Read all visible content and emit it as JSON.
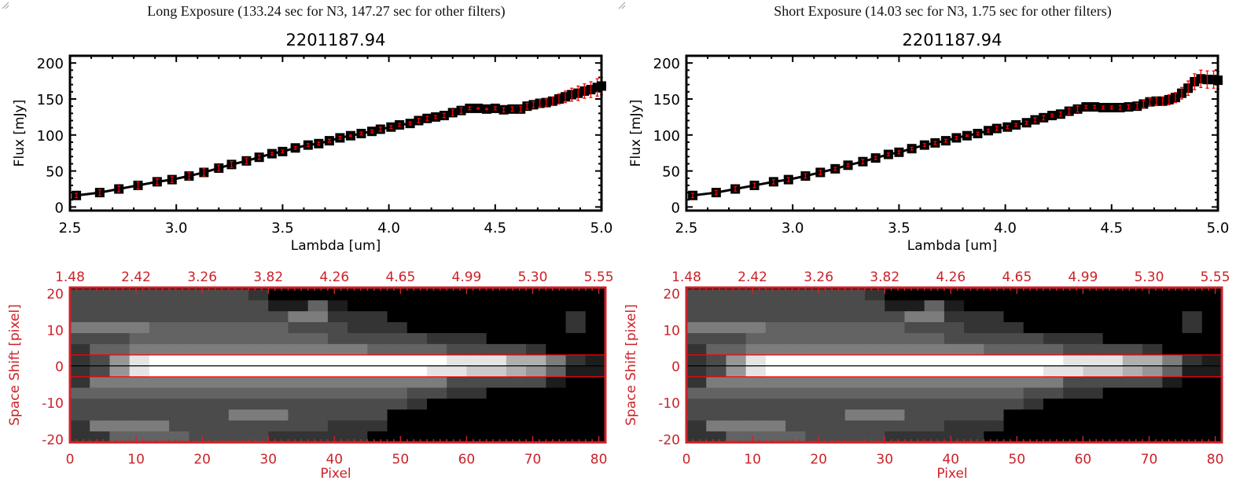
{
  "panels": [
    {
      "heading": "Long Exposure (133.24 sec for N3, 147.27 sec for other filters)"
    },
    {
      "heading": "Short Exposure (14.03 sec for N3, 1.75 sec for other filters)"
    }
  ],
  "colors": {
    "axes": "#000000",
    "errorbar": "#ff0000",
    "image_axes": "#cc2229",
    "extraction_lines": "#ff0000"
  },
  "chart_data": [
    {
      "type": "line",
      "title": "2201187.94",
      "xlabel": "Lambda [um]",
      "ylabel": "Flux [mJy]",
      "xlim": [
        2.5,
        5.0
      ],
      "ylim": [
        -5,
        210
      ],
      "xticks": [
        "2.5",
        "3.0",
        "3.5",
        "4.0",
        "4.5",
        "5.0"
      ],
      "yticks": [
        "0",
        "50",
        "100",
        "150",
        "200"
      ],
      "x": [
        2.53,
        2.64,
        2.73,
        2.82,
        2.91,
        2.98,
        3.06,
        3.13,
        3.2,
        3.26,
        3.33,
        3.39,
        3.45,
        3.5,
        3.56,
        3.62,
        3.67,
        3.72,
        3.77,
        3.82,
        3.87,
        3.92,
        3.96,
        4.01,
        4.05,
        4.1,
        4.14,
        4.18,
        4.22,
        4.26,
        4.3,
        4.34,
        4.38,
        4.42,
        4.46,
        4.5,
        4.54,
        4.58,
        4.62,
        4.65,
        4.68,
        4.71,
        4.74,
        4.77,
        4.8,
        4.83,
        4.86,
        4.89,
        4.92,
        4.95,
        4.98,
        5.0
      ],
      "y": [
        16,
        20,
        25,
        30,
        35,
        38,
        43,
        48,
        54,
        59,
        64,
        69,
        74,
        77,
        82,
        86,
        88,
        92,
        96,
        99,
        102,
        105,
        108,
        111,
        114,
        116,
        120,
        123,
        125,
        127,
        131,
        134,
        137,
        137,
        136,
        137,
        135,
        136,
        136,
        140,
        142,
        144,
        145,
        147,
        150,
        153,
        156,
        158,
        161,
        163,
        166,
        168
      ],
      "yerr": [
        3,
        4,
        4,
        5,
        4,
        4,
        5,
        5,
        4,
        4,
        4,
        3,
        2,
        2,
        2,
        2,
        2,
        2,
        2,
        1,
        2,
        2,
        3,
        2,
        2,
        2,
        3,
        3,
        2,
        3,
        4,
        4,
        2,
        1,
        1,
        2,
        3,
        3,
        4,
        4,
        4,
        5,
        5,
        6,
        7,
        8,
        9,
        10,
        10,
        11,
        12,
        12
      ]
    },
    {
      "type": "heatmap",
      "xlabel": "Pixel",
      "ylabel": "Space Shift [pixel]",
      "xlim": [
        0,
        81
      ],
      "ylim": [
        -21,
        21.5
      ],
      "xticks": [
        "0",
        "10",
        "20",
        "30",
        "40",
        "50",
        "60",
        "70",
        "80"
      ],
      "yticks": [
        "-20",
        "-10",
        "0",
        "10",
        "20"
      ],
      "top_axis_ticks": [
        "1.48",
        "2.42",
        "3.26",
        "3.82",
        "4.26",
        "4.65",
        "4.99",
        "5.30",
        "5.55"
      ],
      "extraction_limits": [
        -3,
        3
      ],
      "center_line": 0,
      "cell_size_pixels": 3,
      "intensity_rows_top_to_bottom": [
        [
          3,
          3,
          3,
          3,
          3,
          3,
          3,
          3,
          3,
          2,
          0,
          0,
          0,
          0,
          0,
          0,
          0,
          0,
          0,
          0,
          0,
          0,
          0,
          0,
          0,
          0,
          0
        ],
        [
          3,
          3,
          3,
          3,
          3,
          3,
          3,
          3,
          3,
          3,
          1,
          1,
          4,
          1,
          0,
          0,
          0,
          0,
          0,
          0,
          0,
          0,
          0,
          0,
          0,
          0,
          0
        ],
        [
          3,
          3,
          3,
          3,
          3,
          3,
          3,
          3,
          3,
          3,
          3,
          5,
          5,
          2,
          2,
          2,
          0,
          0,
          0,
          0,
          0,
          0,
          0,
          0,
          0,
          2,
          0
        ],
        [
          5,
          5,
          5,
          5,
          4,
          4,
          4,
          4,
          4,
          4,
          4,
          3,
          3,
          3,
          2,
          2,
          2,
          0,
          0,
          0,
          0,
          0,
          0,
          0,
          0,
          2,
          0
        ],
        [
          3,
          3,
          3,
          4,
          4,
          4,
          4,
          4,
          4,
          4,
          4,
          4,
          4,
          3,
          3,
          3,
          3,
          3,
          2,
          2,
          2,
          0,
          0,
          0,
          0,
          0,
          0
        ],
        [
          2,
          4,
          4,
          5,
          5,
          5,
          5,
          5,
          5,
          5,
          5,
          5,
          5,
          5,
          5,
          4,
          4,
          4,
          4,
          3,
          3,
          3,
          3,
          2,
          0,
          0,
          0
        ],
        [
          2,
          3,
          6,
          9,
          10,
          10,
          10,
          10,
          10,
          10,
          10,
          10,
          10,
          10,
          10,
          10,
          10,
          10,
          10,
          9,
          9,
          9,
          7,
          7,
          5,
          2,
          1
        ],
        [
          2,
          3,
          6,
          9,
          10,
          10,
          10,
          10,
          10,
          10,
          10,
          10,
          10,
          10,
          10,
          10,
          10,
          10,
          9,
          9,
          8,
          8,
          7,
          6,
          4,
          1,
          1
        ],
        [
          2,
          5,
          5,
          5,
          5,
          5,
          5,
          5,
          5,
          5,
          5,
          5,
          5,
          5,
          5,
          5,
          5,
          5,
          5,
          3,
          3,
          3,
          3,
          3,
          1,
          0,
          0
        ],
        [
          4,
          4,
          4,
          4,
          4,
          4,
          4,
          4,
          4,
          4,
          4,
          4,
          4,
          4,
          4,
          4,
          4,
          3,
          3,
          2,
          2,
          0,
          0,
          0,
          0,
          0,
          0
        ],
        [
          3,
          3,
          3,
          3,
          3,
          3,
          3,
          3,
          3,
          3,
          3,
          3,
          3,
          3,
          3,
          3,
          3,
          2,
          0,
          0,
          0,
          0,
          0,
          0,
          0,
          0,
          0
        ],
        [
          3,
          3,
          3,
          3,
          3,
          3,
          3,
          3,
          5,
          5,
          5,
          3,
          3,
          3,
          3,
          3,
          0,
          0,
          0,
          0,
          0,
          0,
          0,
          0,
          0,
          0,
          0
        ],
        [
          2,
          5,
          5,
          5,
          5,
          3,
          3,
          3,
          3,
          3,
          3,
          3,
          3,
          2,
          2,
          2,
          0,
          0,
          0,
          0,
          0,
          0,
          0,
          0,
          0,
          0,
          0
        ],
        [
          2,
          2,
          4,
          4,
          4,
          4,
          3,
          3,
          3,
          3,
          2,
          2,
          2,
          2,
          2,
          0,
          0,
          0,
          0,
          0,
          0,
          0,
          0,
          0,
          0,
          0,
          0
        ]
      ]
    },
    {
      "type": "line",
      "title": "2201187.94",
      "xlabel": "Lambda [um]",
      "ylabel": "Flux [mJy]",
      "xlim": [
        2.5,
        5.0
      ],
      "ylim": [
        -5,
        210
      ],
      "xticks": [
        "2.5",
        "3.0",
        "3.5",
        "4.0",
        "4.5",
        "5.0"
      ],
      "yticks": [
        "0",
        "50",
        "100",
        "150",
        "200"
      ],
      "x": [
        2.53,
        2.64,
        2.73,
        2.82,
        2.91,
        2.98,
        3.06,
        3.13,
        3.2,
        3.26,
        3.33,
        3.39,
        3.45,
        3.5,
        3.56,
        3.62,
        3.67,
        3.72,
        3.77,
        3.82,
        3.87,
        3.92,
        3.96,
        4.01,
        4.05,
        4.1,
        4.14,
        4.18,
        4.22,
        4.26,
        4.3,
        4.34,
        4.38,
        4.42,
        4.46,
        4.5,
        4.54,
        4.58,
        4.62,
        4.65,
        4.68,
        4.71,
        4.74,
        4.77,
        4.8,
        4.83,
        4.86,
        4.89,
        4.92,
        4.95,
        4.98,
        5.0
      ],
      "y": [
        16,
        20,
        25,
        30,
        35,
        38,
        43,
        48,
        53,
        58,
        63,
        68,
        73,
        76,
        81,
        86,
        89,
        92,
        96,
        99,
        102,
        106,
        109,
        111,
        114,
        117,
        121,
        124,
        127,
        129,
        133,
        136,
        139,
        139,
        138,
        138,
        138,
        139,
        140,
        143,
        146,
        147,
        147,
        149,
        152,
        158,
        165,
        174,
        178,
        177,
        177,
        176
      ],
      "yerr": [
        3,
        3,
        3,
        3,
        3,
        3,
        3,
        3,
        2,
        2,
        3,
        2,
        2,
        2,
        2,
        2,
        2,
        2,
        2,
        1,
        2,
        2,
        3,
        2,
        2,
        2,
        3,
        3,
        2,
        3,
        4,
        4,
        2,
        2,
        2,
        2,
        3,
        3,
        4,
        5,
        5,
        5,
        6,
        7,
        7,
        8,
        10,
        11,
        12,
        12,
        12,
        12
      ]
    },
    {
      "type": "heatmap",
      "xlabel": "Pixel",
      "ylabel": "Space Shift [pixel]",
      "xlim": [
        0,
        81
      ],
      "ylim": [
        -21,
        21.5
      ],
      "xticks": [
        "0",
        "10",
        "20",
        "30",
        "40",
        "50",
        "60",
        "70",
        "80"
      ],
      "yticks": [
        "-20",
        "-10",
        "0",
        "10",
        "20"
      ],
      "top_axis_ticks": [
        "1.48",
        "2.42",
        "3.26",
        "3.82",
        "4.26",
        "4.65",
        "4.99",
        "5.30",
        "5.55"
      ],
      "extraction_limits": [
        -3,
        3
      ],
      "center_line": 0,
      "cell_size_pixels": 3,
      "intensity_rows_top_to_bottom": [
        [
          3,
          3,
          3,
          3,
          3,
          3,
          3,
          3,
          3,
          2,
          0,
          0,
          0,
          0,
          0,
          0,
          0,
          0,
          0,
          0,
          0,
          0,
          0,
          0,
          0,
          0,
          0
        ],
        [
          3,
          3,
          3,
          3,
          3,
          3,
          3,
          3,
          3,
          3,
          1,
          1,
          4,
          1,
          0,
          0,
          0,
          0,
          0,
          0,
          0,
          0,
          0,
          0,
          0,
          0,
          0
        ],
        [
          3,
          3,
          3,
          3,
          3,
          3,
          3,
          3,
          3,
          3,
          3,
          5,
          5,
          2,
          2,
          2,
          0,
          0,
          0,
          0,
          0,
          0,
          0,
          0,
          0,
          2,
          0
        ],
        [
          5,
          5,
          5,
          5,
          4,
          4,
          4,
          4,
          4,
          4,
          4,
          3,
          3,
          3,
          2,
          2,
          2,
          0,
          0,
          0,
          0,
          0,
          0,
          0,
          0,
          2,
          0
        ],
        [
          3,
          3,
          3,
          4,
          4,
          4,
          4,
          4,
          4,
          4,
          4,
          4,
          4,
          3,
          3,
          3,
          3,
          3,
          2,
          2,
          2,
          0,
          0,
          0,
          0,
          0,
          0
        ],
        [
          2,
          4,
          4,
          5,
          5,
          5,
          5,
          5,
          5,
          5,
          5,
          5,
          5,
          5,
          5,
          4,
          4,
          4,
          4,
          3,
          3,
          3,
          3,
          2,
          0,
          0,
          0
        ],
        [
          2,
          3,
          6,
          9,
          10,
          10,
          10,
          10,
          10,
          10,
          10,
          10,
          10,
          10,
          10,
          10,
          10,
          10,
          10,
          9,
          9,
          9,
          7,
          7,
          5,
          2,
          1
        ],
        [
          2,
          3,
          6,
          9,
          10,
          10,
          10,
          10,
          10,
          10,
          10,
          10,
          10,
          10,
          10,
          10,
          10,
          10,
          9,
          9,
          8,
          8,
          7,
          6,
          4,
          1,
          1
        ],
        [
          2,
          5,
          5,
          5,
          5,
          5,
          5,
          5,
          5,
          5,
          5,
          5,
          5,
          5,
          5,
          5,
          5,
          5,
          5,
          3,
          3,
          3,
          3,
          3,
          1,
          0,
          0
        ],
        [
          4,
          4,
          4,
          4,
          4,
          4,
          4,
          4,
          4,
          4,
          4,
          4,
          4,
          4,
          4,
          4,
          4,
          3,
          3,
          2,
          2,
          0,
          0,
          0,
          0,
          0,
          0
        ],
        [
          3,
          3,
          3,
          3,
          3,
          3,
          3,
          3,
          3,
          3,
          3,
          3,
          3,
          3,
          3,
          3,
          3,
          2,
          0,
          0,
          0,
          0,
          0,
          0,
          0,
          0,
          0
        ],
        [
          3,
          3,
          3,
          3,
          3,
          3,
          3,
          3,
          5,
          5,
          5,
          3,
          3,
          3,
          3,
          3,
          0,
          0,
          0,
          0,
          0,
          0,
          0,
          0,
          0,
          0,
          0
        ],
        [
          2,
          5,
          5,
          5,
          5,
          3,
          3,
          3,
          3,
          3,
          3,
          3,
          3,
          2,
          2,
          2,
          0,
          0,
          0,
          0,
          0,
          0,
          0,
          0,
          0,
          0,
          0
        ],
        [
          2,
          2,
          4,
          4,
          4,
          4,
          3,
          3,
          3,
          3,
          2,
          2,
          2,
          2,
          2,
          0,
          0,
          0,
          0,
          0,
          0,
          0,
          0,
          0,
          0,
          0,
          0
        ]
      ]
    }
  ]
}
